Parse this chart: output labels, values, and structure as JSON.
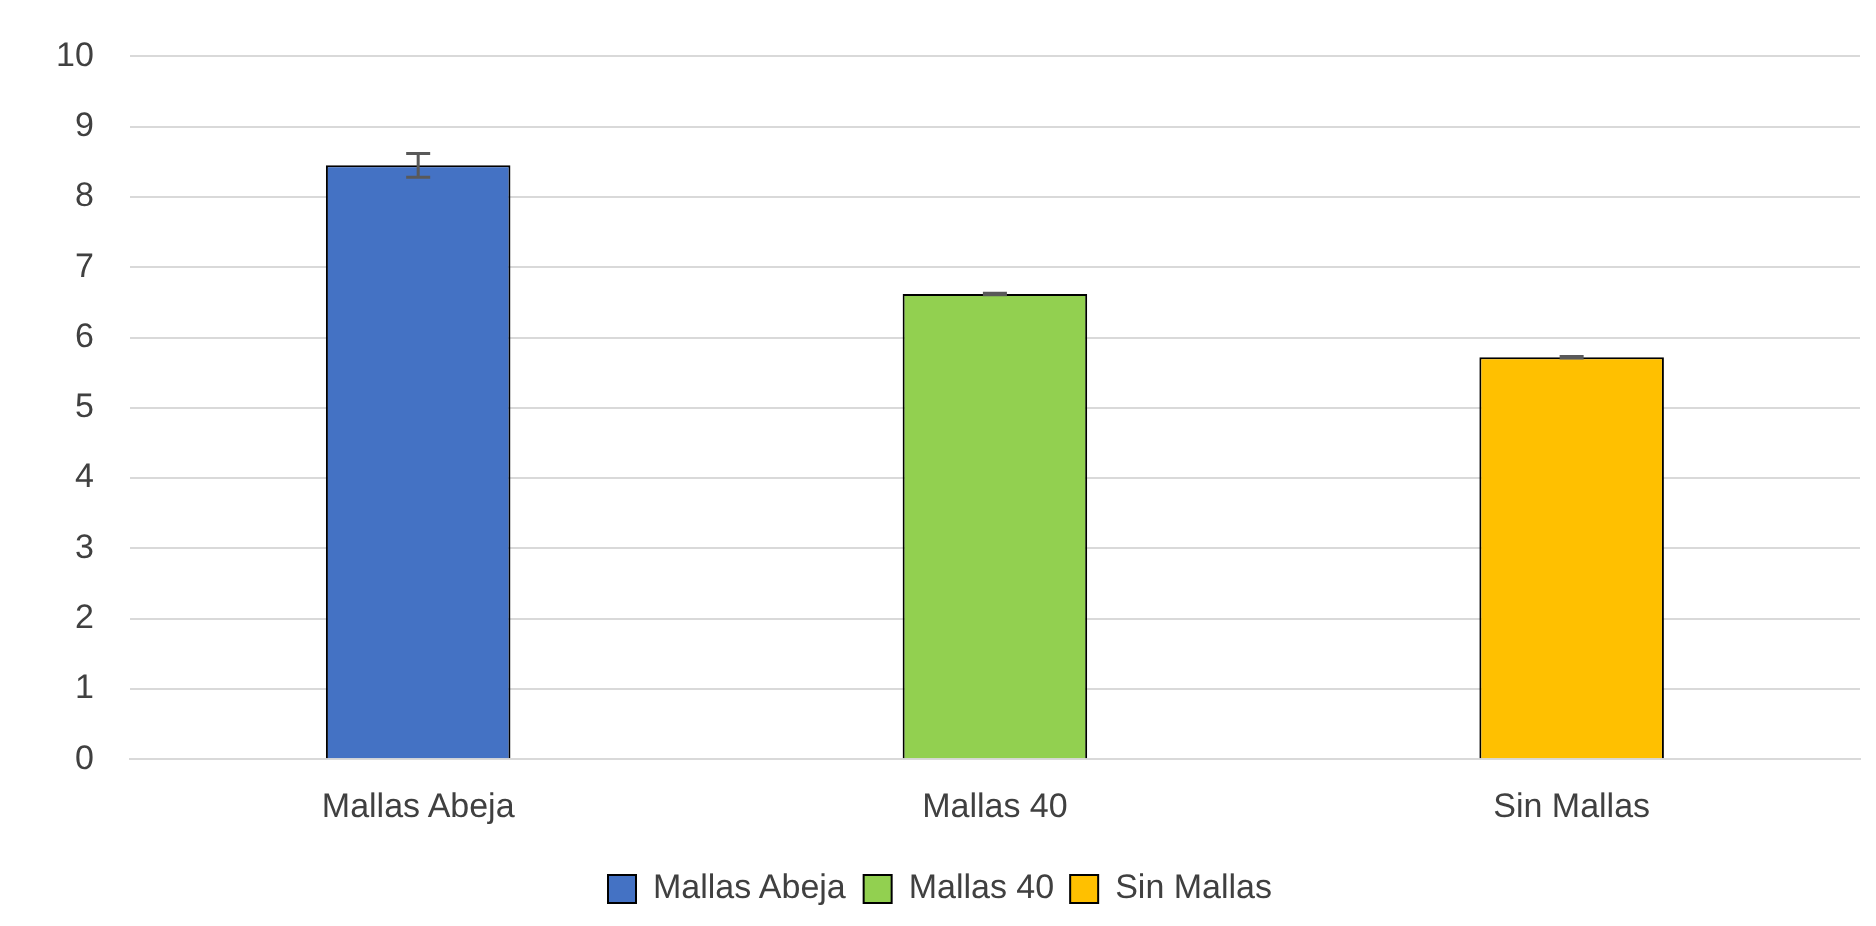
{
  "chart_data": {
    "type": "bar",
    "categories": [
      "Mallas Abeja",
      "Mallas 40",
      "Sin Mallas"
    ],
    "series": [
      {
        "name": "Mallas Abeja",
        "color": "#4472c4",
        "values": [
          8.45,
          null,
          null
        ],
        "errors": [
          0.17,
          null,
          null
        ]
      },
      {
        "name": "Mallas 40",
        "color": "#92d050",
        "values": [
          null,
          6.62,
          null
        ],
        "errors": [
          null,
          0.01,
          null
        ]
      },
      {
        "name": "Sin Mallas",
        "color": "#ffc000",
        "values": [
          null,
          null,
          5.72
        ],
        "errors": [
          null,
          null,
          0.01
        ]
      }
    ],
    "ylim": [
      0,
      10
    ],
    "yticks": [
      0,
      1,
      2,
      3,
      4,
      5,
      6,
      7,
      8,
      9,
      10
    ],
    "grid": "y",
    "legend": "bottom"
  }
}
